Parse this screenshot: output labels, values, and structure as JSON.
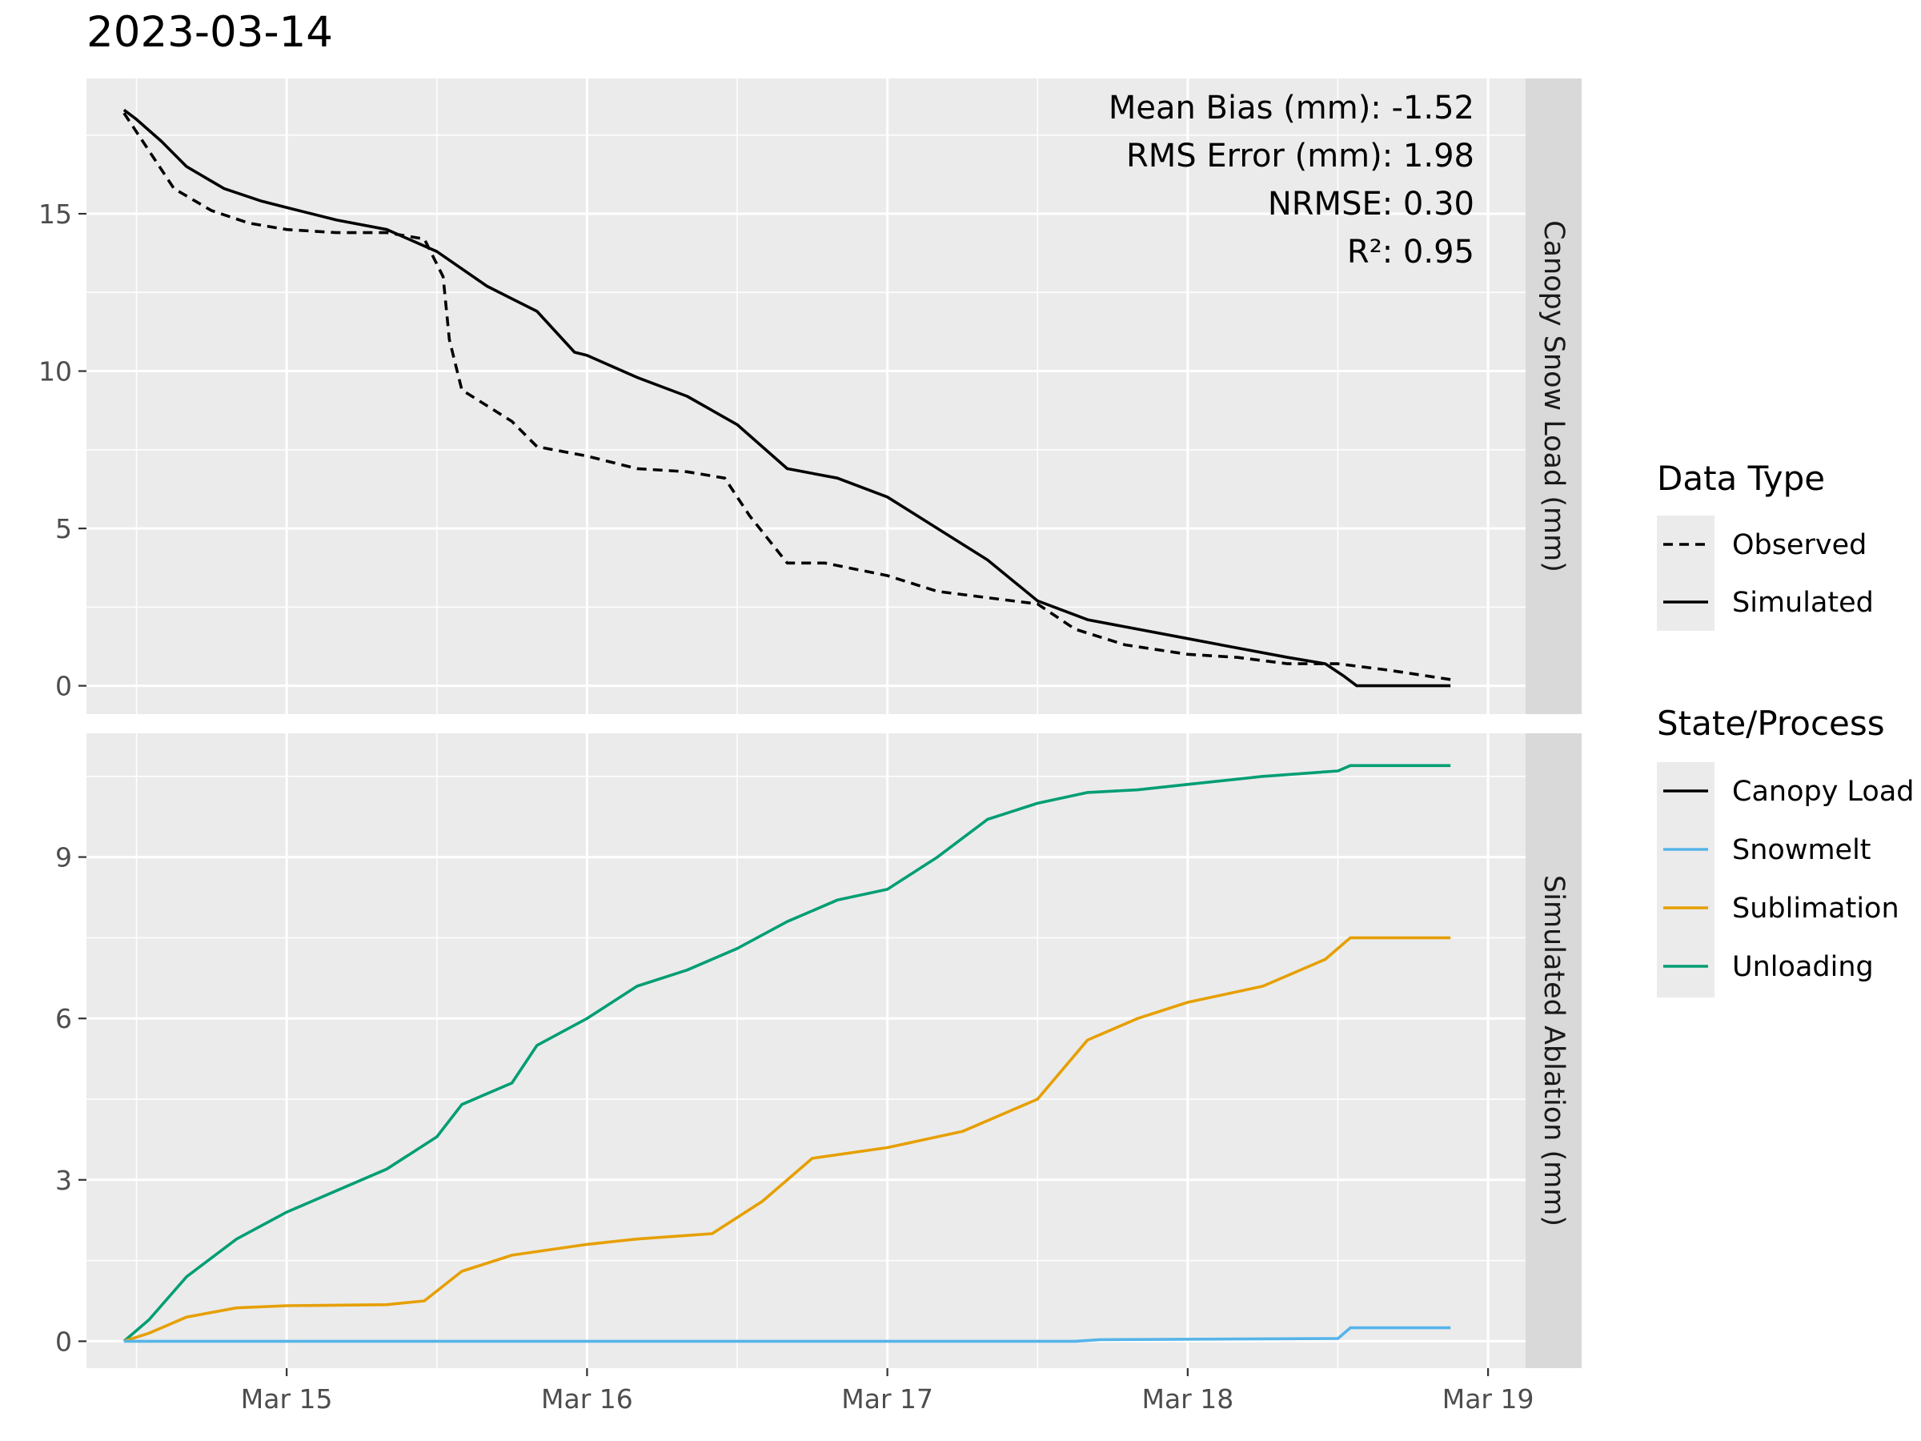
{
  "title": "2023-03-14",
  "stats": {
    "mean_bias": "Mean Bias (mm): -1.52",
    "rms_error": "RMS Error (mm): 1.98",
    "nrmse": "NRMSE: 0.30",
    "r2": "R²: 0.95"
  },
  "legends": {
    "data_type": {
      "title": "Data Type",
      "items": [
        {
          "label": "Observed",
          "style": "dashed",
          "color": "#000000"
        },
        {
          "label": "Simulated",
          "style": "solid",
          "color": "#000000"
        }
      ]
    },
    "state_process": {
      "title": "State/Process",
      "items": [
        {
          "label": "Canopy Load",
          "color": "#000000"
        },
        {
          "label": "Snowmelt",
          "color": "#56B4E9"
        },
        {
          "label": "Sublimation",
          "color": "#E69F00"
        },
        {
          "label": "Unloading",
          "color": "#009E73"
        }
      ]
    }
  },
  "chart_data": [
    {
      "type": "line",
      "facet_label": "Canopy Snow Load (mm)",
      "ylabel": "Canopy Snow Load (mm)",
      "xlabel": "",
      "x_unit": "datetime (2023)",
      "xlim": [
        "2023-03-14 08:00",
        "2023-03-19 03:00"
      ],
      "ylim": [
        -0.9,
        19.3
      ],
      "x_ticks": [
        "Mar 15",
        "Mar 16",
        "Mar 17",
        "Mar 18",
        "Mar 19"
      ],
      "y_ticks": [
        0,
        5,
        10,
        15
      ],
      "grid": true,
      "series": [
        {
          "name": "Simulated",
          "color": "#000000",
          "style": "solid",
          "x": [
            "2023-03-14 11:00",
            "2023-03-14 12:00",
            "2023-03-14 14:00",
            "2023-03-14 16:00",
            "2023-03-14 19:00",
            "2023-03-14 22:00",
            "2023-03-15 00:00",
            "2023-03-15 04:00",
            "2023-03-15 08:00",
            "2023-03-15 12:00",
            "2023-03-15 16:00",
            "2023-03-15 20:00",
            "2023-03-15 23:00",
            "2023-03-16 00:00",
            "2023-03-16 04:00",
            "2023-03-16 08:00",
            "2023-03-16 12:00",
            "2023-03-16 16:00",
            "2023-03-16 20:00",
            "2023-03-17 00:00",
            "2023-03-17 04:00",
            "2023-03-17 08:00",
            "2023-03-17 12:00",
            "2023-03-17 16:00",
            "2023-03-17 20:00",
            "2023-03-18 00:00",
            "2023-03-18 04:00",
            "2023-03-18 08:00",
            "2023-03-18 11:00",
            "2023-03-18 12:30",
            "2023-03-18 13:30",
            "2023-03-18 15:00",
            "2023-03-18 21:00"
          ],
          "values": [
            18.3,
            18.0,
            17.3,
            16.5,
            15.8,
            15.4,
            15.2,
            14.8,
            14.5,
            13.8,
            12.7,
            11.9,
            10.6,
            10.5,
            9.8,
            9.2,
            8.3,
            6.9,
            6.6,
            6.0,
            5.0,
            4.0,
            2.7,
            2.1,
            1.8,
            1.5,
            1.2,
            0.9,
            0.7,
            0.3,
            0.0,
            0.0,
            0.0
          ]
        },
        {
          "name": "Observed",
          "color": "#000000",
          "style": "dashed",
          "x": [
            "2023-03-14 11:00",
            "2023-03-14 13:00",
            "2023-03-14 15:00",
            "2023-03-14 18:00",
            "2023-03-14 21:00",
            "2023-03-15 00:00",
            "2023-03-15 04:00",
            "2023-03-15 08:00",
            "2023-03-15 11:00",
            "2023-03-15 12:30",
            "2023-03-15 13:00",
            "2023-03-15 14:00",
            "2023-03-15 18:00",
            "2023-03-15 20:00",
            "2023-03-16 00:00",
            "2023-03-16 04:00",
            "2023-03-16 08:00",
            "2023-03-16 11:00",
            "2023-03-16 13:00",
            "2023-03-16 16:00",
            "2023-03-16 19:00",
            "2023-03-17 00:00",
            "2023-03-17 04:00",
            "2023-03-17 08:00",
            "2023-03-17 12:00",
            "2023-03-17 15:00",
            "2023-03-17 19:00",
            "2023-03-18 00:00",
            "2023-03-18 04:00",
            "2023-03-18 08:00",
            "2023-03-18 12:00",
            "2023-03-18 16:00",
            "2023-03-18 21:00"
          ],
          "values": [
            18.2,
            17.0,
            15.8,
            15.1,
            14.7,
            14.5,
            14.4,
            14.4,
            14.2,
            13.0,
            11.0,
            9.4,
            8.4,
            7.6,
            7.3,
            6.9,
            6.8,
            6.6,
            5.4,
            3.9,
            3.9,
            3.5,
            3.0,
            2.8,
            2.6,
            1.8,
            1.3,
            1.0,
            0.9,
            0.7,
            0.7,
            0.5,
            0.2
          ]
        }
      ]
    },
    {
      "type": "line",
      "facet_label": "Simulated Ablation (mm)",
      "ylabel": "Simulated Ablation (mm)",
      "xlabel": "",
      "x_unit": "datetime (2023)",
      "xlim": [
        "2023-03-14 08:00",
        "2023-03-19 03:00"
      ],
      "ylim": [
        -0.5,
        11.3
      ],
      "x_ticks": [
        "Mar 15",
        "Mar 16",
        "Mar 17",
        "Mar 18",
        "Mar 19"
      ],
      "y_ticks": [
        0,
        3,
        6,
        9
      ],
      "grid": true,
      "series": [
        {
          "name": "Unloading",
          "color": "#009E73",
          "x": [
            "2023-03-14 11:00",
            "2023-03-14 13:00",
            "2023-03-14 16:00",
            "2023-03-14 20:00",
            "2023-03-15 00:00",
            "2023-03-15 04:00",
            "2023-03-15 08:00",
            "2023-03-15 12:00",
            "2023-03-15 14:00",
            "2023-03-15 18:00",
            "2023-03-15 20:00",
            "2023-03-16 00:00",
            "2023-03-16 04:00",
            "2023-03-16 08:00",
            "2023-03-16 12:00",
            "2023-03-16 16:00",
            "2023-03-16 20:00",
            "2023-03-17 00:00",
            "2023-03-17 04:00",
            "2023-03-17 08:00",
            "2023-03-17 12:00",
            "2023-03-17 16:00",
            "2023-03-17 20:00",
            "2023-03-18 00:00",
            "2023-03-18 06:00",
            "2023-03-18 12:00",
            "2023-03-18 13:00",
            "2023-03-18 21:00"
          ],
          "values": [
            0.0,
            0.4,
            1.2,
            1.9,
            2.4,
            2.8,
            3.2,
            3.8,
            4.4,
            4.8,
            5.5,
            6.0,
            6.6,
            6.9,
            7.3,
            7.8,
            8.2,
            8.4,
            9.0,
            9.7,
            10.0,
            10.2,
            10.25,
            10.35,
            10.5,
            10.6,
            10.7,
            10.7
          ]
        },
        {
          "name": "Sublimation",
          "color": "#E69F00",
          "x": [
            "2023-03-14 11:00",
            "2023-03-14 13:00",
            "2023-03-14 16:00",
            "2023-03-14 20:00",
            "2023-03-15 00:00",
            "2023-03-15 08:00",
            "2023-03-15 11:00",
            "2023-03-15 14:00",
            "2023-03-15 18:00",
            "2023-03-16 00:00",
            "2023-03-16 04:00",
            "2023-03-16 10:00",
            "2023-03-16 14:00",
            "2023-03-16 18:00",
            "2023-03-17 00:00",
            "2023-03-17 06:00",
            "2023-03-17 12:00",
            "2023-03-17 16:00",
            "2023-03-17 20:00",
            "2023-03-18 00:00",
            "2023-03-18 06:00",
            "2023-03-18 11:00",
            "2023-03-18 13:00",
            "2023-03-18 21:00"
          ],
          "values": [
            0.0,
            0.15,
            0.45,
            0.62,
            0.66,
            0.68,
            0.75,
            1.3,
            1.6,
            1.8,
            1.9,
            2.0,
            2.6,
            3.4,
            3.6,
            3.9,
            4.5,
            5.6,
            6.0,
            6.3,
            6.6,
            7.1,
            7.5,
            7.5
          ]
        },
        {
          "name": "Snowmelt",
          "color": "#56B4E9",
          "x": [
            "2023-03-14 11:00",
            "2023-03-17 15:00",
            "2023-03-17 17:00",
            "2023-03-18 12:00",
            "2023-03-18 13:00",
            "2023-03-18 21:00"
          ],
          "values": [
            0.0,
            0.0,
            0.03,
            0.05,
            0.25,
            0.25
          ]
        }
      ]
    }
  ]
}
